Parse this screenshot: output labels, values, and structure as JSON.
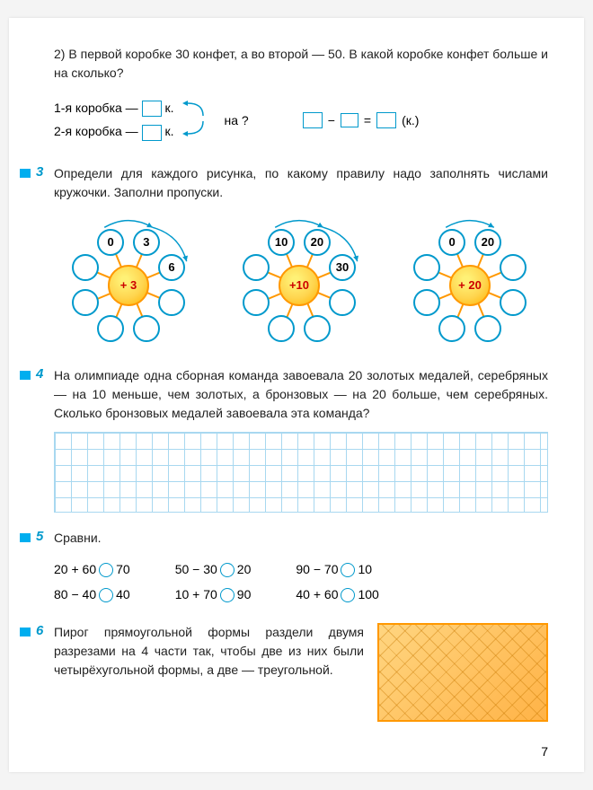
{
  "task2": {
    "text": "2) В первой коробке 30 конфет, а во второй — 50. В какой коробке конфет больше и на сколько?",
    "row1_label": "1-я коробка —",
    "row2_label": "2-я коробка —",
    "unit": "к.",
    "between": "на ?",
    "eq_unit": "(к.)"
  },
  "task3": {
    "num": "3",
    "text": "Определи для каждого рисунка, по какому правилу надо заполнять числами кружочки. Заполни пропуски.",
    "suns": [
      "+ 3",
      "+10",
      "+ 20"
    ],
    "d1": {
      "vals": [
        "0",
        "3",
        "6",
        "",
        "",
        "",
        "",
        ""
      ]
    },
    "d2": {
      "vals": [
        "10",
        "20",
        "30",
        "",
        "",
        "",
        "",
        ""
      ]
    },
    "d3": {
      "vals": [
        "0",
        "20",
        "",
        "",
        "",
        "",
        "",
        ""
      ]
    }
  },
  "task4": {
    "num": "4",
    "text": "На олимпиаде одна сборная команда завоевала 20 золотых медалей, серебряных — на 10 меньше, чем золотых, а бронзовых — на 20 больше, чем серебряных. Сколько бронзовых медалей завоевала эта команда?"
  },
  "task5": {
    "num": "5",
    "title": "Сравни.",
    "col1": [
      "20 + 60",
      "80 − 40"
    ],
    "col1r": [
      "70",
      "40"
    ],
    "col2": [
      "50 − 30",
      "10 + 70"
    ],
    "col2r": [
      "20",
      "90"
    ],
    "col3": [
      "90 − 70",
      "40 + 60"
    ],
    "col3r": [
      "10",
      "100"
    ]
  },
  "task6": {
    "num": "6",
    "text": "Пирог прямоугольной формы раздели двумя разрезами на 4 части так, чтобы две из них были четырёхугольной формы, а две — треугольной."
  },
  "page_num": "7",
  "colors": {
    "accent": "#0099cc",
    "marker": "#00aeef",
    "sun_border": "#ff9800"
  }
}
